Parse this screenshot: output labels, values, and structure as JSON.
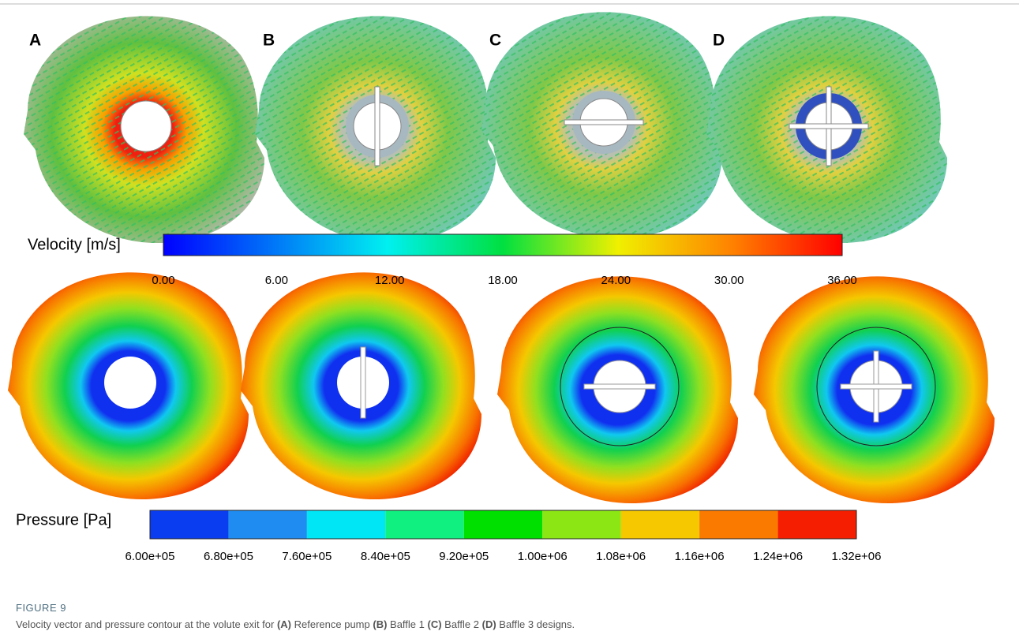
{
  "panels": {
    "labels": [
      "A",
      "B",
      "C",
      "D"
    ]
  },
  "velocity_legend": {
    "title": "Velocity [m/s]",
    "ticks": [
      "0.00",
      "6.00",
      "12.00",
      "18.00",
      "24.00",
      "30.00",
      "36.00"
    ]
  },
  "pressure_legend": {
    "title": "Pressure [Pa]",
    "ticks": [
      "6.00e+05",
      "6.80e+05",
      "7.60e+05",
      "8.40e+05",
      "9.20e+05",
      "1.00e+06",
      "1.08e+06",
      "1.16e+06",
      "1.24e+06",
      "1.32e+06"
    ]
  },
  "caption": {
    "label": "FIGURE 9",
    "parts": [
      "Velocity vector and pressure contour at the volute exit for ",
      "(A)",
      " Reference pump ",
      "(B)",
      " Baffle 1 ",
      "(C)",
      " Baffle 2 ",
      "(D)",
      " Baffle 3 designs."
    ]
  }
}
